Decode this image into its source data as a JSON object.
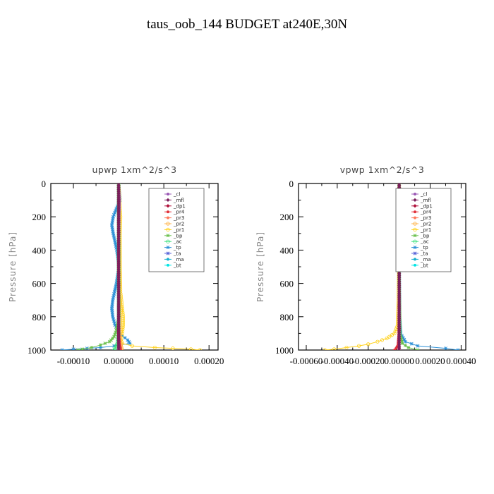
{
  "title": "taus_oob_144  BUDGET at240E,30N",
  "colors": {
    "cl": "#9b59b6",
    "mfl": "#7a1f5c",
    "dp1": "#b0103a",
    "pr4": "#e0303a",
    "pr3": "#ff7a5c",
    "pr2": "#ffb347",
    "pr1": "#ffd11a",
    "bp": "#6abf4b",
    "ac": "#39e07a",
    "tp": "#2b8fd6",
    "ta": "#5560d8",
    "ma": "#1ab0d0",
    "bt": "#00e5e5",
    "axis": "#000000"
  },
  "chart_data": [
    {
      "type": "line",
      "title": "upwp  1xm^2/s^3",
      "ylabel": "Pressure [hPa]",
      "ylim": [
        1000,
        0
      ],
      "xlim": [
        -0.00015,
        0.00022
      ],
      "xticks": [
        -0.0001,
        0.0,
        0.0001,
        0.0002
      ],
      "xtick_labels": [
        "-0.00010",
        "0.00000",
        "0.00010",
        "0.00020"
      ],
      "yticks": [
        0,
        200,
        400,
        600,
        800,
        1000
      ],
      "ytick_labels": [
        "0",
        "200",
        "400",
        "600",
        "800",
        "1000"
      ],
      "legend": [
        "_cl",
        "_mfl",
        "_dp1",
        "_pr4",
        "_pr3",
        "_pr2",
        "_pr1",
        "_bp",
        "_ac",
        "_tp",
        "_ta",
        "_ma",
        "_bt"
      ],
      "legend_position": "upper-right",
      "series": [
        {
          "name": "_tp",
          "color_key": "tp",
          "y": [
            0,
            100,
            150,
            200,
            250,
            300,
            400,
            500,
            600,
            700,
            750,
            800,
            850,
            900,
            940,
            960,
            975,
            985,
            990,
            995,
            1000
          ],
          "x": [
            0,
            3e-06,
            -5e-06,
            -1.2e-05,
            -1.5e-05,
            -1.2e-05,
            -4e-06,
            1e-06,
            -5e-06,
            -1.3e-05,
            -1.5e-05,
            -1.3e-05,
            -8e-06,
            2e-06,
            2e-05,
            2.5e-05,
            -1e-05,
            -4e-05,
            -7e-05,
            -0.0001,
            -0.000125
          ]
        },
        {
          "name": "_bp",
          "color_key": "bp",
          "y": [
            0,
            300,
            600,
            800,
            880,
            920,
            950,
            970,
            985,
            995,
            1000
          ],
          "x": [
            0,
            1e-06,
            1e-06,
            1e-06,
            -5e-06,
            -1e-05,
            -2e-05,
            -4e-05,
            -6e-05,
            -8e-05,
            -9e-05
          ]
        },
        {
          "name": "_pr1",
          "color_key": "pr1",
          "y": [
            0,
            100,
            200,
            300,
            500,
            650,
            750,
            800,
            850,
            900,
            940,
            960,
            975,
            985,
            990,
            995,
            1000
          ],
          "x": [
            0,
            2e-06,
            4e-06,
            3e-06,
            3e-06,
            4e-06,
            8e-06,
            1e-05,
            1e-05,
            8e-06,
            5e-06,
            8e-06,
            3e-05,
            8e-05,
            0.00012,
            0.00016,
            0.00018
          ]
        },
        {
          "name": "_pr2",
          "color_key": "pr2",
          "y": [
            0,
            500,
            800,
            900,
            950,
            980,
            1000
          ],
          "x": [
            0,
            1e-06,
            2e-06,
            3e-06,
            4e-06,
            6e-06,
            8e-06
          ]
        },
        {
          "name": "_ac",
          "color_key": "ac",
          "y": [
            0,
            500,
            900,
            960,
            990,
            1000
          ],
          "x": [
            0,
            0.0,
            0.0,
            -3e-06,
            -8e-06,
            -1e-05
          ]
        },
        {
          "name": "_pr4",
          "color_key": "pr4",
          "y": [
            0,
            500,
            900,
            960,
            985,
            1000
          ],
          "x": [
            0,
            0.0,
            0.0,
            2e-06,
            4e-06,
            5e-06
          ]
        },
        {
          "name": "_cl",
          "color_key": "cl",
          "y": [
            0,
            100,
            200,
            400,
            600,
            800,
            900,
            1000
          ],
          "x": [
            0,
            2e-06,
            1e-06,
            0.0,
            0.0,
            0.0,
            0.0,
            0.0
          ]
        },
        {
          "name": "_dp1",
          "color_key": "dp1",
          "y": [
            0,
            200,
            400,
            600,
            800,
            900,
            950,
            1000
          ],
          "x": [
            0,
            0.0,
            0.0,
            0.0,
            0.0,
            0.0,
            0.0,
            0.0
          ]
        },
        {
          "name": "_mfl",
          "color_key": "mfl",
          "y": [
            0,
            200,
            400,
            600,
            800,
            1000
          ],
          "x": [
            0,
            0.0,
            0.0,
            0.0,
            0.0,
            0.0
          ]
        }
      ]
    },
    {
      "type": "line",
      "title": "vpwp  1xm^2/s^3",
      "ylabel": "Pressure [hPa]",
      "ylim": [
        1000,
        0
      ],
      "xlim": [
        -0.00065,
        0.00043
      ],
      "xticks": [
        -0.0006,
        -0.0004,
        -0.0002,
        0.0,
        0.0002,
        0.0004
      ],
      "xtick_labels": [
        "-0.00060",
        "-0.00040",
        "-0.00020",
        "0.00000",
        "0.00020",
        "0.00040"
      ],
      "yticks": [
        0,
        200,
        400,
        600,
        800,
        1000
      ],
      "ytick_labels": [
        "0",
        "200",
        "400",
        "600",
        "800",
        "1000"
      ],
      "legend": [
        "_cl",
        "_mfl",
        "_dp1",
        "_pr4",
        "_pr3",
        "_pr2",
        "_pr1",
        "_bp",
        "_ac",
        "_tp",
        "_ta",
        "_ma",
        "_bt"
      ],
      "legend_position": "upper-right",
      "series": [
        {
          "name": "_pr1",
          "color_key": "pr1",
          "y": [
            0,
            400,
            700,
            850,
            900,
            930,
            950,
            965,
            975,
            985,
            995,
            1000
          ],
          "x": [
            0,
            0.0,
            -5e-06,
            -1e-05,
            -3e-05,
            -8e-05,
            -0.00014,
            -0.0002,
            -0.00026,
            -0.00034,
            -0.00042,
            -0.00048
          ]
        },
        {
          "name": "_tp",
          "color_key": "tp",
          "y": [
            0,
            400,
            800,
            900,
            950,
            975,
            990,
            1000
          ],
          "x": [
            0,
            0.0,
            3e-06,
            1e-05,
            4e-05,
            0.00012,
            0.0003,
            0.00038
          ]
        },
        {
          "name": "_bp",
          "color_key": "bp",
          "y": [
            0,
            600,
            900,
            960,
            985,
            1000
          ],
          "x": [
            0,
            0.0,
            5e-06,
            2e-05,
            6e-05,
            0.00012
          ]
        },
        {
          "name": "_pr4",
          "color_key": "pr4",
          "y": [
            0,
            600,
            900,
            970,
            990,
            1000
          ],
          "x": [
            0,
            0.0,
            -2e-06,
            -8e-06,
            -2e-05,
            -3e-05
          ]
        },
        {
          "name": "_cl",
          "color_key": "cl",
          "y": [
            0,
            200,
            600,
            1000
          ],
          "x": [
            0,
            0.0,
            0.0,
            0.0
          ]
        },
        {
          "name": "_dp1",
          "color_key": "dp1",
          "y": [
            0,
            200,
            400,
            600,
            800,
            1000
          ],
          "x": [
            0,
            0.0,
            0.0,
            0.0,
            0.0,
            0.0
          ]
        },
        {
          "name": "_mfl",
          "color_key": "mfl",
          "y": [
            0,
            200,
            400,
            600,
            800,
            1000
          ],
          "x": [
            0,
            0.0,
            0.0,
            0.0,
            0.0,
            0.0
          ]
        }
      ]
    }
  ]
}
